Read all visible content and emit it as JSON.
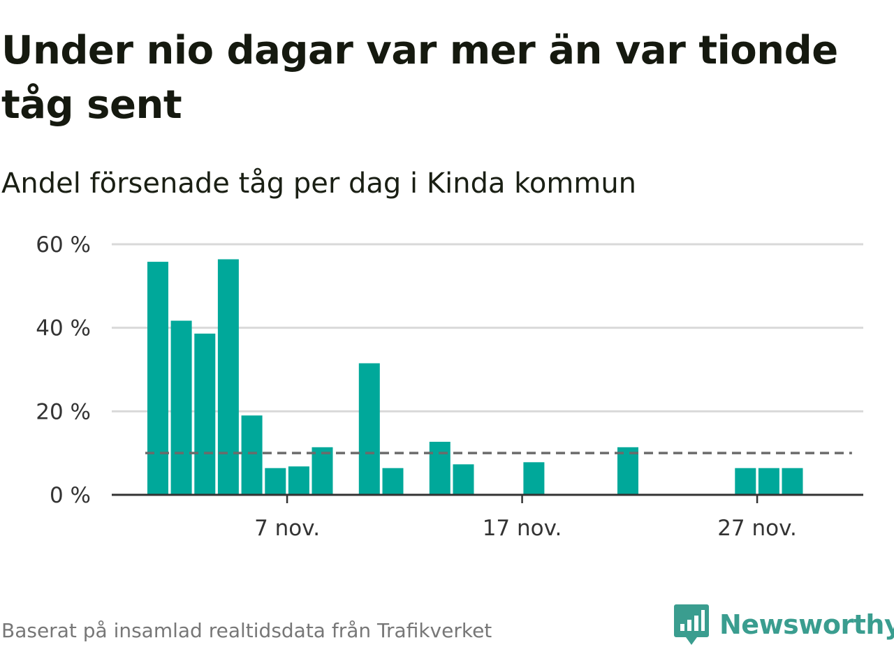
{
  "title": "Under nio dagar var mer än var tionde tåg sent",
  "subtitle": "Andel försenade tåg per dag i Kinda kommun",
  "source": "Baserat på insamlad realtidsdata från Trafikverket",
  "brand": {
    "name": "Newsworthy",
    "icon": "newsworthy-logo-icon"
  },
  "colors": {
    "bar": "#00a89a",
    "reference_line": "#6b6b6b",
    "grid": "#d9d9d9",
    "axis": "#333333",
    "brand": "#3a9d8f"
  },
  "chart_data": {
    "type": "bar",
    "x_unit": "day",
    "x_range": [
      "2024-11-01",
      "2024-11-30"
    ],
    "x_ticks": [
      {
        "date": "2024-11-07",
        "label": "7 nov."
      },
      {
        "date": "2024-11-17",
        "label": "17 nov."
      },
      {
        "date": "2024-11-27",
        "label": "27 nov."
      }
    ],
    "bars": [
      {
        "date": "2024-11-01",
        "value": 55.8
      },
      {
        "date": "2024-11-02",
        "value": 41.7
      },
      {
        "date": "2024-11-03",
        "value": 38.6
      },
      {
        "date": "2024-11-04",
        "value": 56.4
      },
      {
        "date": "2024-11-05",
        "value": 19.0
      },
      {
        "date": "2024-11-06",
        "value": 6.4
      },
      {
        "date": "2024-11-07",
        "value": 6.8
      },
      {
        "date": "2024-11-08",
        "value": 11.4
      },
      {
        "date": "2024-11-10",
        "value": 31.5
      },
      {
        "date": "2024-11-11",
        "value": 6.4
      },
      {
        "date": "2024-11-13",
        "value": 12.7
      },
      {
        "date": "2024-11-14",
        "value": 7.3
      },
      {
        "date": "2024-11-17",
        "value": 7.8
      },
      {
        "date": "2024-11-21",
        "value": 11.4
      },
      {
        "date": "2024-11-26",
        "value": 6.4
      },
      {
        "date": "2024-11-27",
        "value": 6.4
      },
      {
        "date": "2024-11-28",
        "value": 6.4
      }
    ],
    "reference_line": {
      "value": 10,
      "style": "dashed",
      "from": "2024-11-01",
      "to": "2024-11-30"
    },
    "ylim": [
      0,
      60
    ],
    "y_ticks": [
      {
        "value": 0,
        "label": "0 %"
      },
      {
        "value": 20,
        "label": "20 %"
      },
      {
        "value": 40,
        "label": "40 %"
      },
      {
        "value": 60,
        "label": "60 %"
      }
    ],
    "grid": true,
    "legend": false
  }
}
